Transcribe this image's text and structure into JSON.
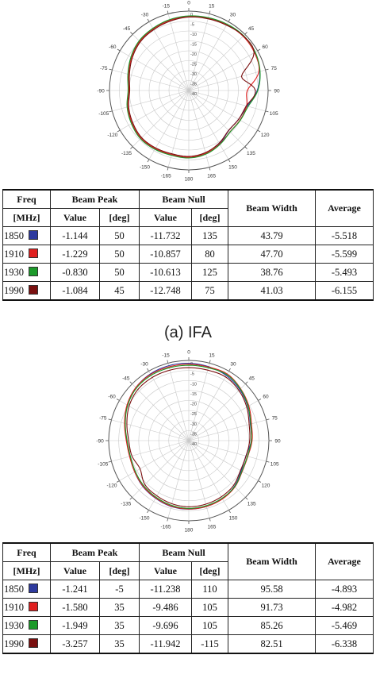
{
  "caption_a": "(a) IFA",
  "tables": [
    {
      "header": {
        "freq": "Freq",
        "unit": "[MHz]",
        "peak": "Beam Peak",
        "null": "Beam Null",
        "value": "Value",
        "deg": "[deg]",
        "width": "Beam Width",
        "avg": "Average"
      },
      "rows": [
        {
          "freq": "1850",
          "peak_value": "-1.144",
          "peak_deg": "50",
          "null_value": "-11.732",
          "null_deg": "135",
          "width": "43.79",
          "avg": "-5.518",
          "color": "#2e3a9e"
        },
        {
          "freq": "1910",
          "peak_value": "-1.229",
          "peak_deg": "50",
          "null_value": "-10.857",
          "null_deg": "80",
          "width": "47.70",
          "avg": "-5.599",
          "color": "#e02020"
        },
        {
          "freq": "1930",
          "peak_value": "-0.830",
          "peak_deg": "50",
          "null_value": "-10.613",
          "null_deg": "125",
          "width": "38.76",
          "avg": "-5.493",
          "color": "#1c9a2a"
        },
        {
          "freq": "1990",
          "peak_value": "-1.084",
          "peak_deg": "45",
          "null_value": "-12.748",
          "null_deg": "75",
          "width": "41.03",
          "avg": "-6.155",
          "color": "#7a1010"
        }
      ]
    },
    {
      "header": {
        "freq": "Freq",
        "unit": "[MHz]",
        "peak": "Beam Peak",
        "null": "Beam Null",
        "value": "Value",
        "deg": "[deg]",
        "width": "Beam Width",
        "avg": "Average"
      },
      "rows": [
        {
          "freq": "1850",
          "peak_value": "-1.241",
          "peak_deg": "-5",
          "null_value": "-11.238",
          "null_deg": "110",
          "width": "95.58",
          "avg": "-4.893",
          "color": "#2e3a9e"
        },
        {
          "freq": "1910",
          "peak_value": "-1.580",
          "peak_deg": "35",
          "null_value": "-9.486",
          "null_deg": "105",
          "width": "91.73",
          "avg": "-4.982",
          "color": "#e02020"
        },
        {
          "freq": "1930",
          "peak_value": "-1.949",
          "peak_deg": "35",
          "null_value": "-9.696",
          "null_deg": "105",
          "width": "85.26",
          "avg": "-5.469",
          "color": "#1c9a2a"
        },
        {
          "freq": "1990",
          "peak_value": "-3.257",
          "peak_deg": "35",
          "null_value": "-11.942",
          "null_deg": "-115",
          "width": "82.51",
          "avg": "-6.338",
          "color": "#7a1010"
        }
      ]
    }
  ],
  "chart_data": [
    {
      "type": "polar",
      "angle_labels": [
        "0",
        "15",
        "30",
        "45",
        "60",
        "75",
        "90",
        "105",
        "120",
        "135",
        "150",
        "165",
        "180",
        "-165",
        "-150",
        "-135",
        "-120",
        "-105",
        "-90",
        "-75",
        "-60",
        "-45",
        "-30",
        "-15"
      ],
      "radial_labels": [
        "0",
        "-5",
        "-10",
        "-15",
        "-20",
        "-25",
        "-30",
        "-35",
        "-40"
      ],
      "rlim": [
        -40,
        0
      ],
      "series": [
        {
          "color": "#2e3a9e",
          "r_db": [
            -2.6,
            -2.2,
            -1.6,
            -1.2,
            -1.6,
            -3.0,
            -5.5,
            -9.5,
            -11.0,
            -11.5,
            -9.0,
            -7.0,
            -6.2,
            -6.4,
            -6.0,
            -5.8,
            -6.8,
            -8.0,
            -9.6,
            -8.4,
            -6.5,
            -4.8,
            -4.0,
            -3.2
          ]
        },
        {
          "color": "#e02020",
          "r_db": [
            -2.8,
            -2.4,
            -1.8,
            -1.3,
            -1.8,
            -3.4,
            -10.5,
            -9.8,
            -10.2,
            -10.6,
            -8.8,
            -7.2,
            -6.4,
            -6.6,
            -6.2,
            -6.0,
            -7.0,
            -8.2,
            -9.8,
            -8.6,
            -6.7,
            -5.0,
            -4.2,
            -3.4
          ]
        },
        {
          "color": "#1c9a2a",
          "r_db": [
            -2.4,
            -2.0,
            -1.4,
            -0.9,
            -1.3,
            -2.8,
            -5.2,
            -9.0,
            -10.0,
            -10.5,
            -8.6,
            -6.8,
            -6.0,
            -6.2,
            -5.8,
            -5.6,
            -6.6,
            -7.8,
            -9.4,
            -8.2,
            -6.3,
            -4.6,
            -3.8,
            -3.0
          ]
        },
        {
          "color": "#7a1010",
          "r_db": [
            -3.0,
            -2.6,
            -2.0,
            -1.1,
            -2.0,
            -12.5,
            -6.4,
            -10.0,
            -11.0,
            -11.6,
            -9.4,
            -7.6,
            -6.8,
            -7.0,
            -6.6,
            -6.4,
            -7.4,
            -8.6,
            -10.2,
            -9.0,
            -7.1,
            -5.4,
            -4.6,
            -3.8
          ]
        }
      ]
    },
    {
      "type": "polar",
      "angle_labels": [
        "0",
        "15",
        "30",
        "45",
        "60",
        "75",
        "90",
        "105",
        "120",
        "135",
        "150",
        "165",
        "180",
        "-165",
        "-150",
        "-135",
        "-120",
        "-105",
        "-90",
        "-75",
        "-60",
        "-45",
        "-30",
        "-15"
      ],
      "radial_labels": [
        "0",
        "-5",
        "-10",
        "-15",
        "-20",
        "-25",
        "-30",
        "-35",
        "-40"
      ],
      "rlim": [
        -40,
        0
      ],
      "series": [
        {
          "color": "#2e3a9e",
          "r_db": [
            -1.4,
            -1.8,
            -2.5,
            -4.0,
            -6.0,
            -8.2,
            -8.8,
            -10.5,
            -9.8,
            -7.8,
            -6.6,
            -6.0,
            -5.8,
            -6.0,
            -6.8,
            -7.6,
            -8.8,
            -9.6,
            -9.0,
            -7.0,
            -4.5,
            -2.6,
            -1.6,
            -1.3
          ]
        },
        {
          "color": "#e02020",
          "r_db": [
            -1.9,
            -2.0,
            -1.6,
            -3.4,
            -5.4,
            -7.6,
            -8.4,
            -9.5,
            -9.2,
            -7.4,
            -6.4,
            -6.0,
            -5.9,
            -6.2,
            -7.0,
            -7.8,
            -8.8,
            -9.4,
            -8.8,
            -6.8,
            -4.4,
            -2.6,
            -1.9,
            -1.9
          ]
        },
        {
          "color": "#1c9a2a",
          "r_db": [
            -2.4,
            -2.4,
            -2.0,
            -3.6,
            -5.8,
            -8.0,
            -8.8,
            -9.7,
            -9.4,
            -7.6,
            -6.8,
            -6.4,
            -6.2,
            -6.6,
            -7.4,
            -8.2,
            -9.2,
            -9.8,
            -9.2,
            -7.2,
            -4.8,
            -3.0,
            -2.4,
            -2.4
          ]
        },
        {
          "color": "#7a1010",
          "r_db": [
            -3.6,
            -3.6,
            -3.3,
            -4.6,
            -6.6,
            -8.8,
            -9.6,
            -10.4,
            -10.2,
            -8.4,
            -7.6,
            -7.2,
            -7.0,
            -7.4,
            -8.2,
            -9.0,
            -11.9,
            -10.6,
            -10.0,
            -8.0,
            -5.6,
            -4.0,
            -3.6,
            -3.6
          ]
        }
      ]
    }
  ]
}
